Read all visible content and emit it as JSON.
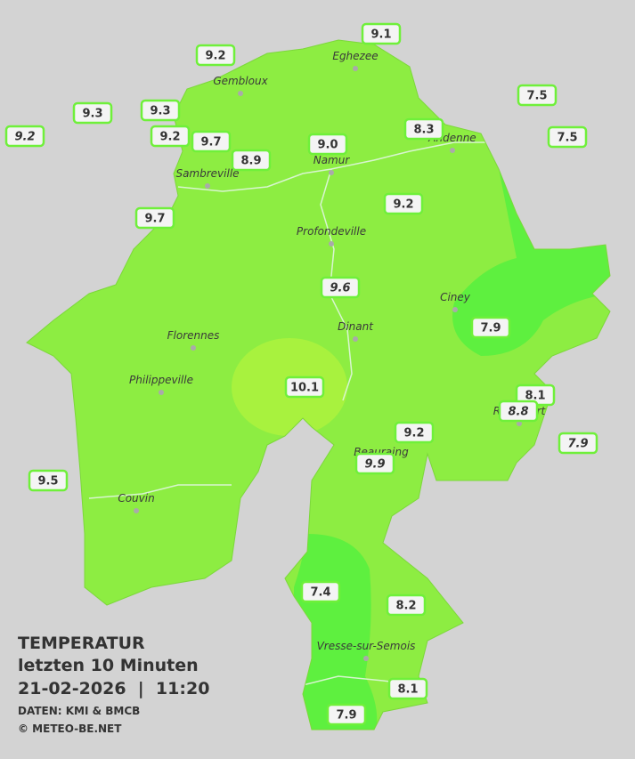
{
  "legend": {
    "title": "TEMPERATUR",
    "subtitle": "letzten 10 Minuten",
    "datetime": "21-02-2026  |  11:20",
    "source": "DATEN: KMI & BMCB",
    "copyright": "© METEO-BE.NET"
  },
  "cities": [
    "Eghezee",
    "Gembloux",
    "Andenne",
    "Namur",
    "Sambreville",
    "Profondeville",
    "Ciney",
    "Dinant",
    "Florennes",
    "Philippeville",
    "Rochefort",
    "Beauraing",
    "Couvin",
    "Vresse-sur-Semois"
  ],
  "stations": [
    "9.1",
    "9.2",
    "7.5",
    "9.3",
    "9.3",
    "9.2",
    "9.2",
    "9.7",
    "8.3",
    "7.5",
    "9.0",
    "8.9",
    "9.2",
    "9.7",
    "9.6",
    "7.9",
    "10.1",
    "8.1",
    "8.8",
    "9.2",
    "7.9",
    "9.9",
    "9.5",
    "7.4",
    "8.2",
    "8.1",
    "7.9"
  ]
}
